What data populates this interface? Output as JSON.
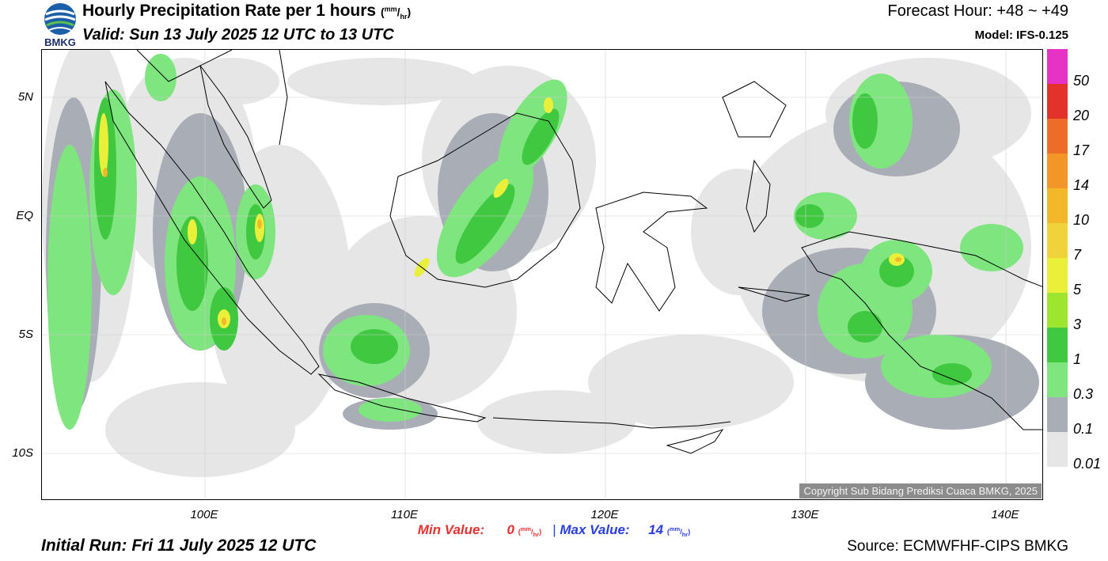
{
  "header": {
    "logo_text": "BMKG",
    "title": "Hourly Precipitation Rate per 1 hours",
    "title_unit_num": "mm",
    "title_unit_den": "hr",
    "valid": "Valid: Sun 13 July 2025 12 UTC to 13 UTC",
    "forecast_hour": "Forecast Hour: +48 ~ +49",
    "model": "Model: IFS-0.125"
  },
  "map": {
    "lat_labels": [
      "5N",
      "EQ",
      "5S",
      "10S"
    ],
    "lon_labels": [
      "100E",
      "110E",
      "120E",
      "130E",
      "140E"
    ],
    "copyright": "Copyright Sub Bidang Prediksi Cuaca BMKG, 2025"
  },
  "stats": {
    "min_label": "Min Value:",
    "min_value": "0",
    "max_label": "Max Value:",
    "max_value": "14",
    "separator": "|",
    "unit_num": "mm",
    "unit_den": "hr"
  },
  "footer": {
    "initial_run": "Initial Run: Fri 11 July 2025 12 UTC",
    "source": "Source: ECMWFHF-CIPS BMKG"
  },
  "legend": {
    "levels": [
      "0.01",
      "0.1",
      "0.3",
      "1",
      "3",
      "5",
      "7",
      "10",
      "14",
      "17",
      "20",
      "50"
    ],
    "colors": [
      "#e6e6e6",
      "#a9adb5",
      "#7fe57f",
      "#40c840",
      "#9ee52f",
      "#eaf03a",
      "#f0d23a",
      "#f3b72a",
      "#f29628",
      "#ec6c28",
      "#e3322a",
      "#e633c5"
    ]
  },
  "colors": {
    "min_value": "#e8302f",
    "max_value": "#2a3fe0",
    "coastline": "#000000",
    "copyright_bg": "#8c8c8c"
  }
}
